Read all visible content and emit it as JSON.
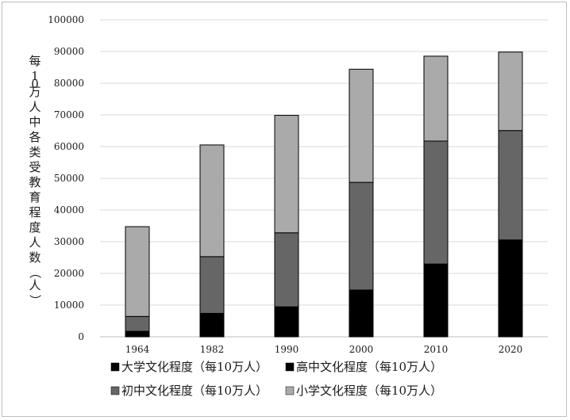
{
  "chart_data": {
    "type": "bar",
    "stacked": true,
    "title": "",
    "xlabel": "",
    "ylabel": "每10万人中各类受教育程度人数（人）",
    "ylim": [
      0,
      100000
    ],
    "yticks": [
      0,
      10000,
      20000,
      30000,
      40000,
      50000,
      60000,
      70000,
      80000,
      90000,
      100000
    ],
    "grid": true,
    "legend_position": "bottom",
    "categories": [
      "1964",
      "1982",
      "1990",
      "2000",
      "2010",
      "2020"
    ],
    "series": [
      {
        "name": "大学文化程度（每10万人）",
        "color": "#000000",
        "values": [
          416,
          615,
          1422,
          3611,
          8930,
          15467
        ]
      },
      {
        "name": "高中文化程度（每10万人）",
        "color": "#000000",
        "values": [
          1319,
          6779,
          8039,
          11146,
          14032,
          15088
        ]
      },
      {
        "name": "初中文化程度（每10万人）",
        "color": "#666666",
        "values": [
          4680,
          17892,
          23344,
          33961,
          38788,
          34507
        ]
      },
      {
        "name": "小学文化程度（每10万人）",
        "color": "#aaaaaa",
        "values": [
          28330,
          35237,
          37057,
          35701,
          26779,
          24767
        ]
      }
    ]
  }
}
